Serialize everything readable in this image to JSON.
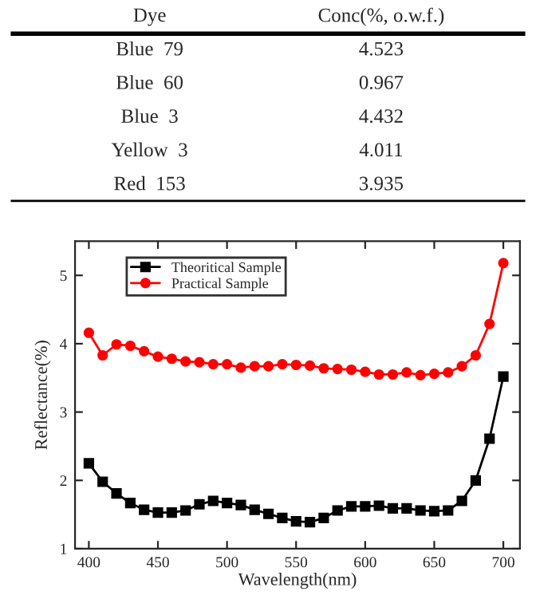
{
  "chart_data": [
    {
      "type": "other",
      "annotations": [
        "Dye",
        "Conc(%, o.w.f.)",
        "Blue  79",
        "4.523",
        "Blue  60",
        "0.967",
        "Blue  3",
        "4.432",
        "Yellow  3",
        "4.011",
        "Red  153",
        "3.935"
      ]
    },
    {
      "type": "line",
      "xlabel": "Wavelength(nm)",
      "ylabel": "Reflectance(%)",
      "x": [
        400,
        410,
        420,
        430,
        440,
        450,
        460,
        470,
        480,
        490,
        500,
        510,
        520,
        530,
        540,
        550,
        560,
        570,
        580,
        590,
        600,
        610,
        620,
        630,
        640,
        650,
        660,
        670,
        680,
        690,
        700
      ],
      "series": [
        {
          "name": "Theoritical Sample",
          "color": "#000000",
          "marker": "square",
          "values": [
            2.25,
            1.98,
            1.81,
            1.67,
            1.57,
            1.53,
            1.53,
            1.56,
            1.65,
            1.7,
            1.67,
            1.64,
            1.57,
            1.51,
            1.45,
            1.4,
            1.39,
            1.45,
            1.56,
            1.62,
            1.62,
            1.63,
            1.59,
            1.59,
            1.56,
            1.55,
            1.56,
            1.7,
            2.0,
            2.61,
            3.52
          ]
        },
        {
          "name": "Practical Sample",
          "color": "#ff0000",
          "marker": "circle",
          "values": [
            4.16,
            3.83,
            3.99,
            3.97,
            3.89,
            3.81,
            3.78,
            3.74,
            3.73,
            3.7,
            3.7,
            3.65,
            3.67,
            3.67,
            3.7,
            3.69,
            3.68,
            3.64,
            3.63,
            3.62,
            3.59,
            3.55,
            3.55,
            3.58,
            3.54,
            3.56,
            3.58,
            3.67,
            3.83,
            4.29,
            5.18
          ]
        }
      ],
      "xlim": [
        390,
        712
      ],
      "ylim": [
        1,
        5.5
      ],
      "xticks": [
        400,
        450,
        500,
        550,
        600,
        650,
        700
      ],
      "yticks": [
        1,
        2,
        3,
        4,
        5
      ],
      "legend": "top left",
      "grid": false
    }
  ]
}
